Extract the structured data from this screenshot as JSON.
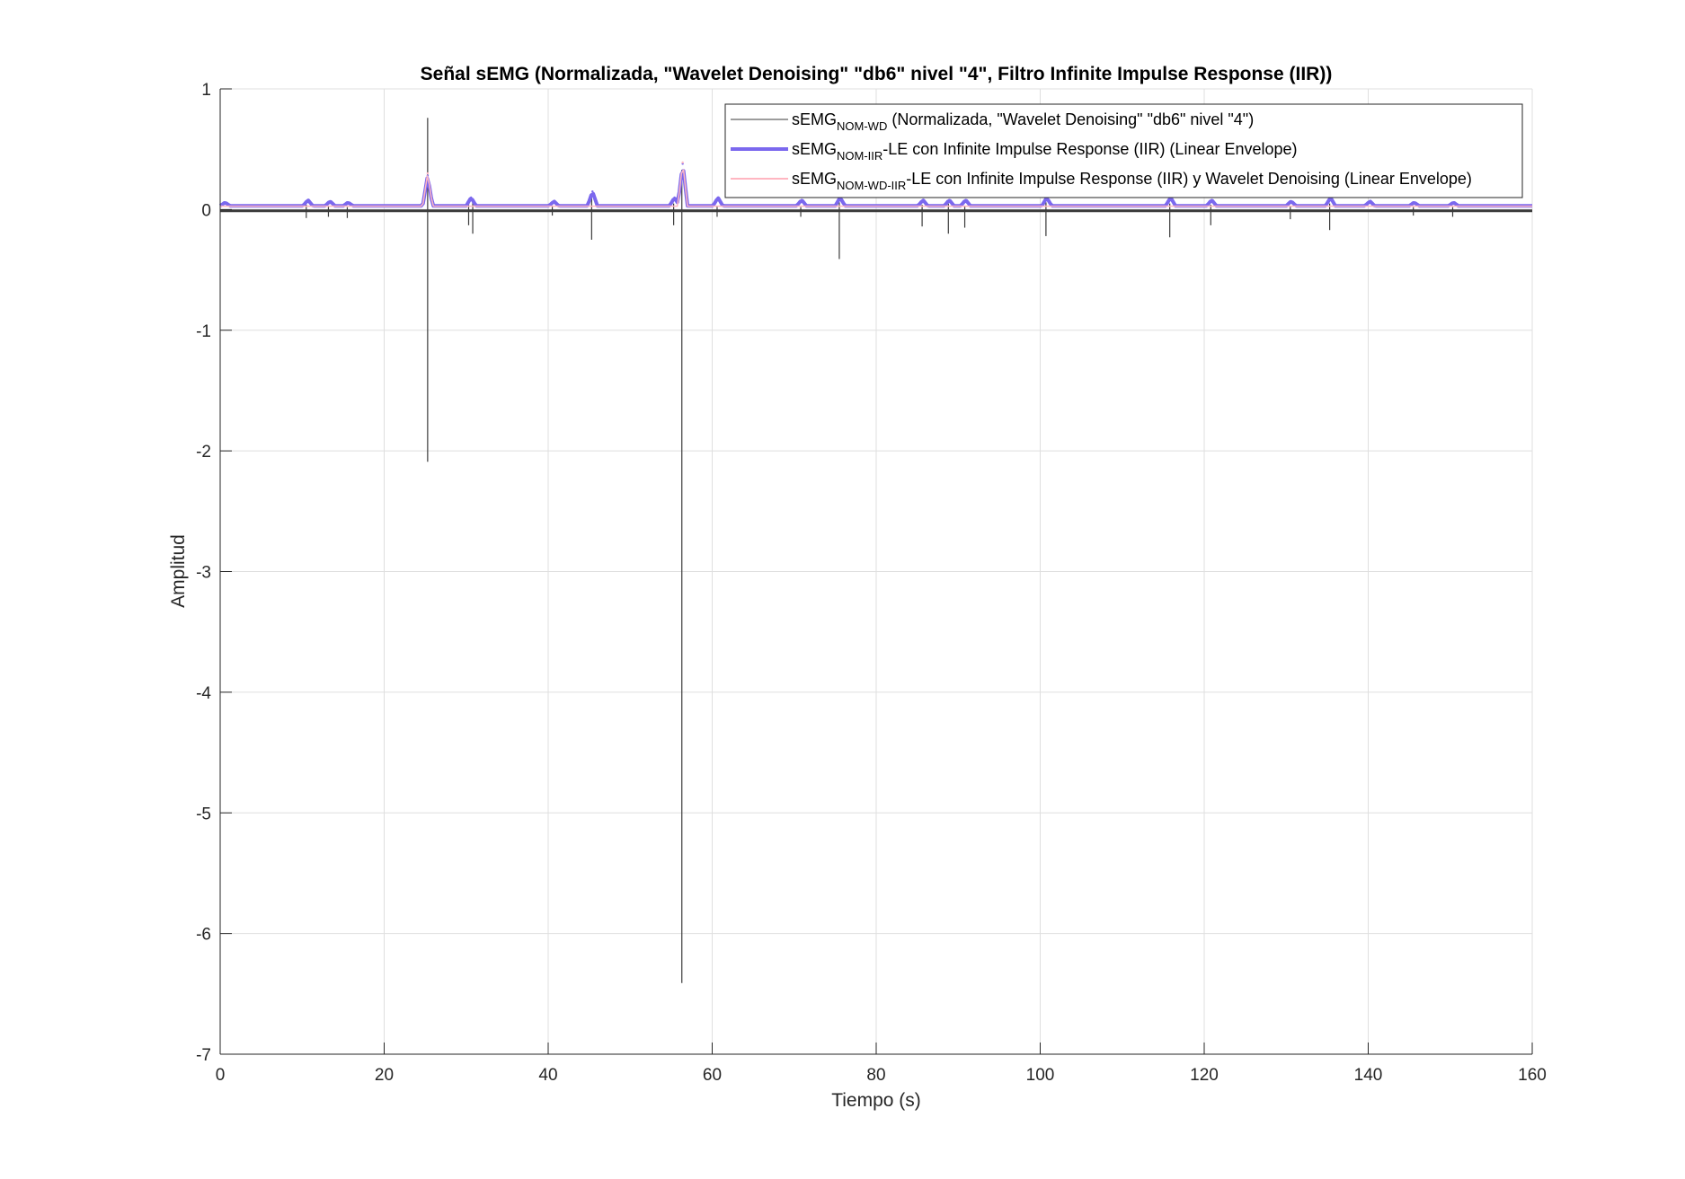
{
  "chart_data": {
    "type": "line",
    "title": "Señal sEMG (Normalizada, \"Wavelet Denoising\" \"db6\" nivel \"4\", Filtro Infinite Impulse Response (IIR))",
    "xlabel": "Tiempo (s)",
    "ylabel": "Amplitud",
    "xlim": [
      0,
      160
    ],
    "ylim": [
      -7,
      1
    ],
    "xticks": [
      0,
      20,
      40,
      60,
      80,
      100,
      120,
      140,
      160
    ],
    "yticks": [
      1,
      0,
      -1,
      -2,
      -3,
      -4,
      -5,
      -6,
      -7
    ],
    "xtick_labels": [
      "0",
      "20",
      "40",
      "60",
      "80",
      "100",
      "120",
      "140",
      "160"
    ],
    "ytick_labels": [
      "1",
      "0",
      "-1",
      "-2",
      "-3",
      "-4",
      "-5",
      "-6",
      "-7"
    ],
    "grid": true,
    "legend_position": "top-right",
    "legend": [
      {
        "main": "sEMG",
        "sub": "NOM-WD",
        "rest": " (Normalizada, \"Wavelet Denoising\" \"db6\" nivel \"4\")"
      },
      {
        "main": "sEMG",
        "sub": "NOM-IIR",
        "rest": "-LE con Infinite Impulse Response (IIR) (Linear Envelope)"
      },
      {
        "main": "sEMG",
        "sub": "NOM-WD-IIR",
        "rest": "-LE con Infinite Impulse Response (IIR) y Wavelet Denoising (Linear Envelope)"
      }
    ],
    "series": [
      {
        "name": "sEMG_NOM-WD",
        "color": "#3a3a3a",
        "baseline": -0.01,
        "spikes": [
          {
            "x": 10.5,
            "lo": -0.07,
            "hi": 0.04
          },
          {
            "x": 13.2,
            "lo": -0.06,
            "hi": 0.03
          },
          {
            "x": 15.5,
            "lo": -0.07,
            "hi": 0.02
          },
          {
            "x": 25.3,
            "lo": -2.09,
            "hi": 0.76
          },
          {
            "x": 30.3,
            "lo": -0.13,
            "hi": 0.05
          },
          {
            "x": 30.8,
            "lo": -0.2,
            "hi": 0.06
          },
          {
            "x": 40.5,
            "lo": -0.05,
            "hi": 0.03
          },
          {
            "x": 45.3,
            "lo": -0.25,
            "hi": 0.12
          },
          {
            "x": 55.3,
            "lo": -0.13,
            "hi": 0.05
          },
          {
            "x": 56.3,
            "lo": -6.41,
            "hi": 0.33
          },
          {
            "x": 60.6,
            "lo": -0.06,
            "hi": 0.03
          },
          {
            "x": 70.8,
            "lo": -0.06,
            "hi": 0.02
          },
          {
            "x": 75.5,
            "lo": -0.41,
            "hi": 0.06
          },
          {
            "x": 85.6,
            "lo": -0.14,
            "hi": 0.04
          },
          {
            "x": 88.8,
            "lo": -0.2,
            "hi": 0.05
          },
          {
            "x": 90.8,
            "lo": -0.15,
            "hi": 0.03
          },
          {
            "x": 100.7,
            "lo": -0.22,
            "hi": 0.06
          },
          {
            "x": 115.8,
            "lo": -0.23,
            "hi": 0.05
          },
          {
            "x": 120.8,
            "lo": -0.13,
            "hi": 0.04
          },
          {
            "x": 130.5,
            "lo": -0.08,
            "hi": 0.03
          },
          {
            "x": 135.3,
            "lo": -0.17,
            "hi": 0.05
          },
          {
            "x": 145.5,
            "lo": -0.05,
            "hi": 0.02
          },
          {
            "x": 150.3,
            "lo": -0.06,
            "hi": 0.02
          }
        ]
      },
      {
        "name": "sEMG_NOM-IIR-LE",
        "color": "#7b68ee",
        "baseline": 0.03,
        "peaks": [
          {
            "x": 0.6,
            "y": 0.06
          },
          {
            "x": 10.7,
            "y": 0.08
          },
          {
            "x": 13.4,
            "y": 0.07
          },
          {
            "x": 15.6,
            "y": 0.06
          },
          {
            "x": 25.3,
            "y": 0.28
          },
          {
            "x": 30.6,
            "y": 0.1
          },
          {
            "x": 40.7,
            "y": 0.07
          },
          {
            "x": 45.4,
            "y": 0.15
          },
          {
            "x": 55.4,
            "y": 0.1
          },
          {
            "x": 56.4,
            "y": 0.38
          },
          {
            "x": 60.7,
            "y": 0.1
          },
          {
            "x": 70.9,
            "y": 0.08
          },
          {
            "x": 75.6,
            "y": 0.1
          },
          {
            "x": 85.7,
            "y": 0.08
          },
          {
            "x": 88.9,
            "y": 0.08
          },
          {
            "x": 90.9,
            "y": 0.08
          },
          {
            "x": 100.8,
            "y": 0.1
          },
          {
            "x": 115.9,
            "y": 0.1
          },
          {
            "x": 120.9,
            "y": 0.08
          },
          {
            "x": 130.6,
            "y": 0.07
          },
          {
            "x": 135.4,
            "y": 0.1
          },
          {
            "x": 140.2,
            "y": 0.07
          },
          {
            "x": 145.6,
            "y": 0.06
          },
          {
            "x": 150.4,
            "y": 0.06
          }
        ]
      },
      {
        "name": "sEMG_NOM-WD-IIR-LE",
        "color": "#ffb6c1",
        "baseline": 0.028,
        "peaks": [
          {
            "x": 25.3,
            "y": 0.3
          },
          {
            "x": 56.4,
            "y": 0.39
          }
        ]
      }
    ]
  }
}
